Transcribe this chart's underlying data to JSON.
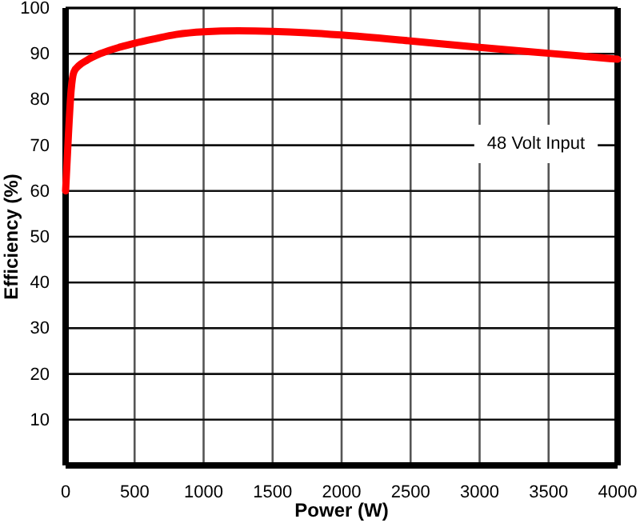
{
  "chart_data": {
    "type": "line",
    "xlabel": "Power (W)",
    "ylabel": "Efficiency (%)",
    "x": [
      0,
      20,
      40,
      60,
      100,
      150,
      250,
      400,
      500,
      650,
      800,
      1000,
      1250,
      1500,
      1750,
      2000,
      2500,
      3000,
      3500,
      4000
    ],
    "series": [
      {
        "color": "#ff0000",
        "values": [
          60,
          72,
          82,
          86,
          87.5,
          88.5,
          90,
          91.5,
          92.3,
          93.3,
          94.2,
          94.8,
          95,
          94.9,
          94.6,
          94.1,
          92.8,
          91.4,
          90.1,
          88.8
        ]
      }
    ],
    "xlim": [
      0,
      4000
    ],
    "xticks": [
      0,
      500,
      1000,
      1500,
      2000,
      2500,
      3000,
      3500,
      4000
    ],
    "ylim": [
      0,
      100
    ],
    "yticks": [
      10,
      20,
      30,
      40,
      50,
      60,
      70,
      80,
      90,
      100
    ],
    "grid": true,
    "marker": "none",
    "line_style": "solid",
    "annotations": [
      "48 Volt Input"
    ]
  }
}
